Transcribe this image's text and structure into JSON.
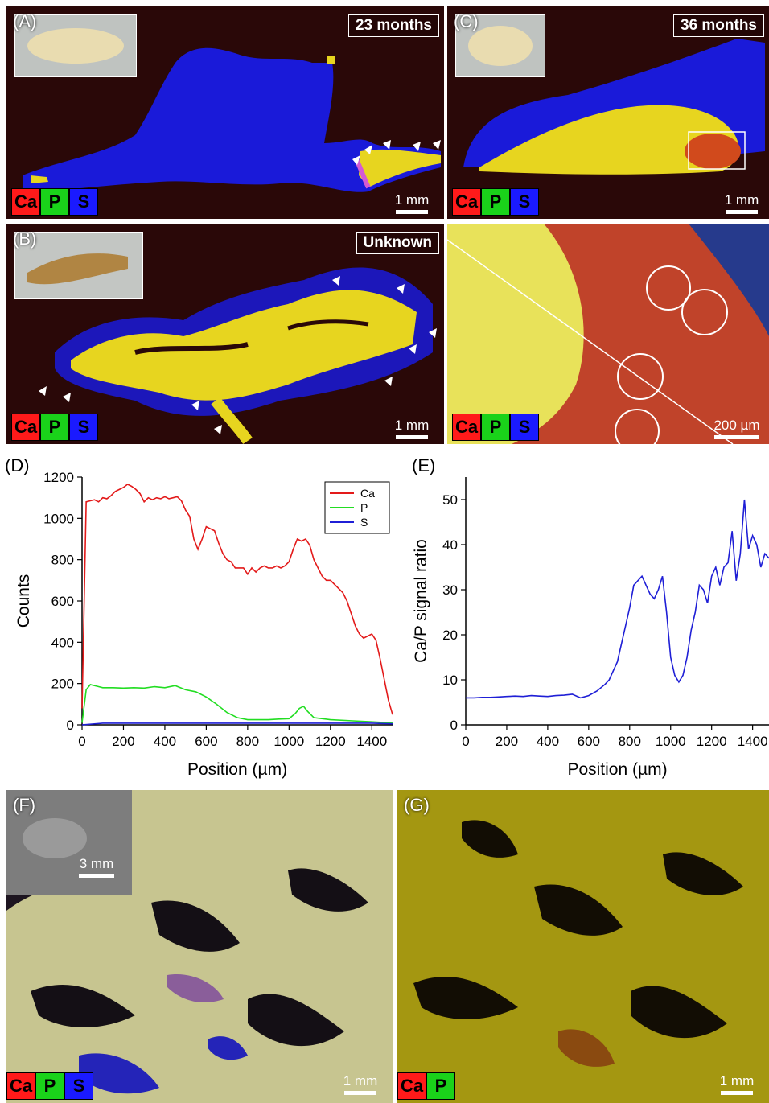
{
  "panels": {
    "a": {
      "label": "(A)",
      "time": "23 months",
      "scale": "1 mm"
    },
    "b": {
      "label": "(B)",
      "time": "Unknown",
      "scale": "1 mm"
    },
    "c": {
      "label": "(C)",
      "time": "36 months",
      "scale": "1 mm"
    },
    "c_zoom": {
      "scale": "200 µm"
    },
    "d": {
      "label": "(D)"
    },
    "e": {
      "label": "(E)"
    },
    "f": {
      "label": "(F)",
      "scale": "1 mm",
      "inset_scale": "3 mm"
    },
    "g": {
      "label": "(G)",
      "scale": "1 mm"
    }
  },
  "channel_chips": {
    "ca": "Ca",
    "p": "P",
    "s": "S"
  },
  "colors": {
    "ca": "#e31a1a",
    "p": "#22dd22",
    "s": "#1f1fd6",
    "map_background": "#2a0808",
    "bone_yellow": "#e7d51f",
    "tissue_blue": "#1a1ad9"
  },
  "chart_data": [
    {
      "type": "line",
      "id": "D",
      "xlabel": "Position (µm)",
      "ylabel": "Counts",
      "xlim": [
        0,
        1500
      ],
      "ylim": [
        0,
        1200
      ],
      "xticks": [
        0,
        200,
        400,
        600,
        800,
        1000,
        1200,
        1400
      ],
      "yticks": [
        0,
        200,
        400,
        600,
        800,
        1000,
        1200
      ],
      "legend_position": "top-right",
      "series": [
        {
          "name": "Ca",
          "color": "#e31a1a",
          "x": [
            0,
            20,
            40,
            60,
            80,
            100,
            120,
            140,
            160,
            180,
            200,
            220,
            240,
            260,
            280,
            300,
            320,
            340,
            360,
            380,
            400,
            420,
            440,
            460,
            480,
            500,
            520,
            540,
            560,
            580,
            600,
            620,
            640,
            660,
            680,
            700,
            720,
            740,
            760,
            780,
            800,
            820,
            840,
            860,
            880,
            900,
            920,
            940,
            960,
            980,
            1000,
            1020,
            1040,
            1060,
            1080,
            1100,
            1120,
            1140,
            1160,
            1180,
            1200,
            1220,
            1240,
            1260,
            1280,
            1300,
            1320,
            1340,
            1360,
            1380,
            1400,
            1420,
            1440,
            1460,
            1480,
            1500
          ],
          "values": [
            80,
            1080,
            1085,
            1090,
            1080,
            1100,
            1095,
            1110,
            1130,
            1140,
            1150,
            1165,
            1155,
            1140,
            1120,
            1080,
            1100,
            1090,
            1100,
            1095,
            1105,
            1095,
            1100,
            1105,
            1085,
            1040,
            1010,
            900,
            850,
            900,
            960,
            950,
            940,
            880,
            830,
            800,
            790,
            760,
            760,
            760,
            730,
            760,
            740,
            760,
            770,
            760,
            760,
            770,
            760,
            770,
            790,
            850,
            900,
            890,
            900,
            870,
            800,
            760,
            720,
            700,
            700,
            680,
            660,
            640,
            600,
            540,
            480,
            440,
            420,
            430,
            440,
            410,
            320,
            220,
            120,
            50
          ]
        },
        {
          "name": "P",
          "color": "#22dd22",
          "x": [
            0,
            20,
            40,
            60,
            80,
            100,
            150,
            200,
            250,
            300,
            350,
            400,
            450,
            500,
            550,
            600,
            650,
            700,
            750,
            800,
            850,
            900,
            950,
            1000,
            1030,
            1050,
            1070,
            1090,
            1120,
            1200,
            1300,
            1400,
            1450,
            1500
          ],
          "values": [
            10,
            170,
            195,
            190,
            185,
            180,
            180,
            178,
            180,
            178,
            185,
            180,
            190,
            170,
            160,
            135,
            100,
            60,
            35,
            25,
            25,
            25,
            28,
            30,
            55,
            80,
            90,
            65,
            35,
            25,
            20,
            15,
            12,
            8
          ]
        },
        {
          "name": "S",
          "color": "#1f1fd6",
          "x": [
            0,
            100,
            200,
            300,
            400,
            500,
            600,
            700,
            800,
            900,
            1000,
            1100,
            1200,
            1300,
            1400,
            1500
          ],
          "values": [
            0,
            8,
            8,
            8,
            8,
            8,
            8,
            8,
            8,
            8,
            8,
            8,
            8,
            8,
            8,
            5
          ]
        }
      ]
    },
    {
      "type": "line",
      "id": "E",
      "xlabel": "Position (µm)",
      "ylabel": "Ca/P signal ratio",
      "xlim": [
        0,
        1480
      ],
      "ylim": [
        0,
        55
      ],
      "xticks": [
        0,
        200,
        400,
        600,
        800,
        1000,
        1200,
        1400
      ],
      "yticks": [
        0,
        10,
        20,
        30,
        40,
        50
      ],
      "series": [
        {
          "color": "#1f1fd6",
          "x": [
            0,
            40,
            80,
            120,
            160,
            200,
            240,
            280,
            320,
            360,
            400,
            440,
            480,
            520,
            560,
            600,
            640,
            680,
            700,
            720,
            740,
            760,
            780,
            800,
            820,
            840,
            860,
            880,
            900,
            920,
            940,
            960,
            980,
            1000,
            1020,
            1040,
            1060,
            1080,
            1100,
            1120,
            1140,
            1160,
            1180,
            1200,
            1220,
            1240,
            1260,
            1280,
            1300,
            1320,
            1340,
            1360,
            1380,
            1400,
            1420,
            1440,
            1460,
            1480
          ],
          "values": [
            6,
            6,
            6.1,
            6.1,
            6.2,
            6.3,
            6.4,
            6.3,
            6.5,
            6.4,
            6.3,
            6.5,
            6.6,
            6.8,
            6,
            6.5,
            7.5,
            9,
            10,
            12,
            14,
            18,
            22,
            26,
            31,
            32,
            33,
            31,
            29,
            28,
            30,
            33,
            25,
            15,
            11,
            9.5,
            11,
            15,
            21,
            25,
            31,
            30,
            27,
            33,
            35,
            31,
            35,
            36,
            43,
            32,
            38,
            50,
            39,
            42,
            40,
            35,
            38,
            37
          ]
        }
      ]
    }
  ]
}
